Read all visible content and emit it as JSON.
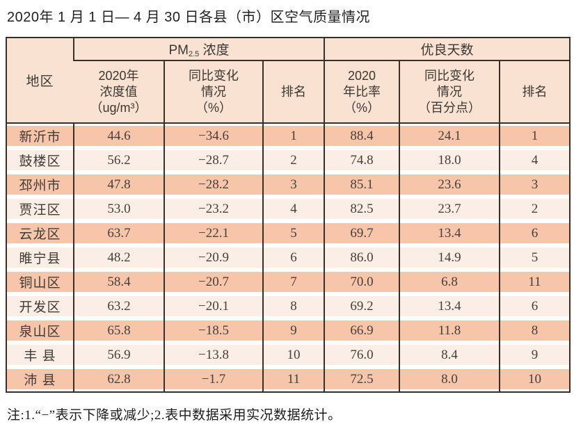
{
  "title": "2020年 1 月 1 日— 4 月 30 日各县（市）区空气质量情况",
  "table": {
    "region_header": "地区",
    "pm_group": {
      "prefix": "PM",
      "sub": "2.5",
      "suffix": " 浓度"
    },
    "days_group": "优良天数",
    "sub_pm_value": {
      "l1": "2020年",
      "l2": "浓度值",
      "l3": "（ug/m³）"
    },
    "sub_pm_change": {
      "l1": "同比变化",
      "l2": "情况",
      "l3": "（%）"
    },
    "sub_pm_rank": "排名",
    "sub_days_rate": {
      "l1": "2020",
      "l2": "年比率",
      "l3": "（%）"
    },
    "sub_days_change": {
      "l1": "同比变化",
      "l2": "情况",
      "l3": "（百分点）"
    },
    "sub_days_rank": "排名",
    "rows": [
      {
        "region": "新沂市",
        "pm_value": "44.6",
        "pm_change": "−34.6",
        "pm_rank": "1",
        "rate": "88.4",
        "rate_change": "24.1",
        "rate_rank": "1"
      },
      {
        "region": "鼓楼区",
        "pm_value": "56.2",
        "pm_change": "−28.7",
        "pm_rank": "2",
        "rate": "74.8",
        "rate_change": "18.0",
        "rate_rank": "4"
      },
      {
        "region": "邳州市",
        "pm_value": "47.8",
        "pm_change": "−28.2",
        "pm_rank": "3",
        "rate": "85.1",
        "rate_change": "23.6",
        "rate_rank": "3"
      },
      {
        "region": "贾汪区",
        "pm_value": "53.0",
        "pm_change": "−23.2",
        "pm_rank": "4",
        "rate": "82.5",
        "rate_change": "23.7",
        "rate_rank": "2"
      },
      {
        "region": "云龙区",
        "pm_value": "63.7",
        "pm_change": "−22.1",
        "pm_rank": "5",
        "rate": "69.7",
        "rate_change": "13.4",
        "rate_rank": "6"
      },
      {
        "region": "睢宁县",
        "pm_value": "48.2",
        "pm_change": "−20.9",
        "pm_rank": "6",
        "rate": "86.0",
        "rate_change": "14.9",
        "rate_rank": "5"
      },
      {
        "region": "铜山区",
        "pm_value": "58.4",
        "pm_change": "−20.7",
        "pm_rank": "7",
        "rate": "70.0",
        "rate_change": "6.8",
        "rate_rank": "11"
      },
      {
        "region": "开发区",
        "pm_value": "63.2",
        "pm_change": "−20.1",
        "pm_rank": "8",
        "rate": "69.2",
        "rate_change": "13.4",
        "rate_rank": "6"
      },
      {
        "region": "泉山区",
        "pm_value": "65.8",
        "pm_change": "−18.5",
        "pm_rank": "9",
        "rate": "66.9",
        "rate_change": "11.8",
        "rate_rank": "8"
      },
      {
        "region": "丰 县",
        "pm_value": "56.9",
        "pm_change": "−13.8",
        "pm_rank": "10",
        "rate": "76.0",
        "rate_change": "8.4",
        "rate_rank": "9"
      },
      {
        "region": "沛 县",
        "pm_value": "62.8",
        "pm_change": "−1.7",
        "pm_rank": "11",
        "rate": "72.5",
        "rate_change": "8.0",
        "rate_rank": "10"
      }
    ]
  },
  "note": "注:1.“−”表示下降或减少;2.表中数据采用实况数据统计。",
  "colors": {
    "row_odd": "#f7c5aa",
    "row_even": "#fbeee7",
    "header_bg": "#f9e2d1",
    "border": "#37302a"
  },
  "chart_data": {
    "type": "table",
    "title": "2020年1月1日—4月30日各县（市）区空气质量情况",
    "column_groups": [
      "PM2.5浓度",
      "优良天数"
    ],
    "columns": [
      "地区",
      "2020年浓度值（ug/m³）",
      "同比变化情况（%）",
      "排名",
      "2020年比率（%）",
      "同比变化情况（百分点）",
      "排名"
    ],
    "rows": [
      [
        "新沂市",
        44.6,
        -34.6,
        1,
        88.4,
        24.1,
        1
      ],
      [
        "鼓楼区",
        56.2,
        -28.7,
        2,
        74.8,
        18.0,
        4
      ],
      [
        "邳州市",
        47.8,
        -28.2,
        3,
        85.1,
        23.6,
        3
      ],
      [
        "贾汪区",
        53.0,
        -23.2,
        4,
        82.5,
        23.7,
        2
      ],
      [
        "云龙区",
        63.7,
        -22.1,
        5,
        69.7,
        13.4,
        6
      ],
      [
        "睢宁县",
        48.2,
        -20.9,
        6,
        86.0,
        14.9,
        5
      ],
      [
        "铜山区",
        58.4,
        -20.7,
        7,
        70.0,
        6.8,
        11
      ],
      [
        "开发区",
        63.2,
        -20.1,
        8,
        69.2,
        13.4,
        6
      ],
      [
        "泉山区",
        65.8,
        -18.5,
        9,
        66.9,
        11.8,
        8
      ],
      [
        "丰县",
        56.9,
        -13.8,
        10,
        76.0,
        8.4,
        9
      ],
      [
        "沛县",
        62.8,
        -1.7,
        11,
        72.5,
        8.0,
        10
      ]
    ],
    "note": "注:1.“−”表示下降或减少;2.表中数据采用实况数据统计。"
  }
}
